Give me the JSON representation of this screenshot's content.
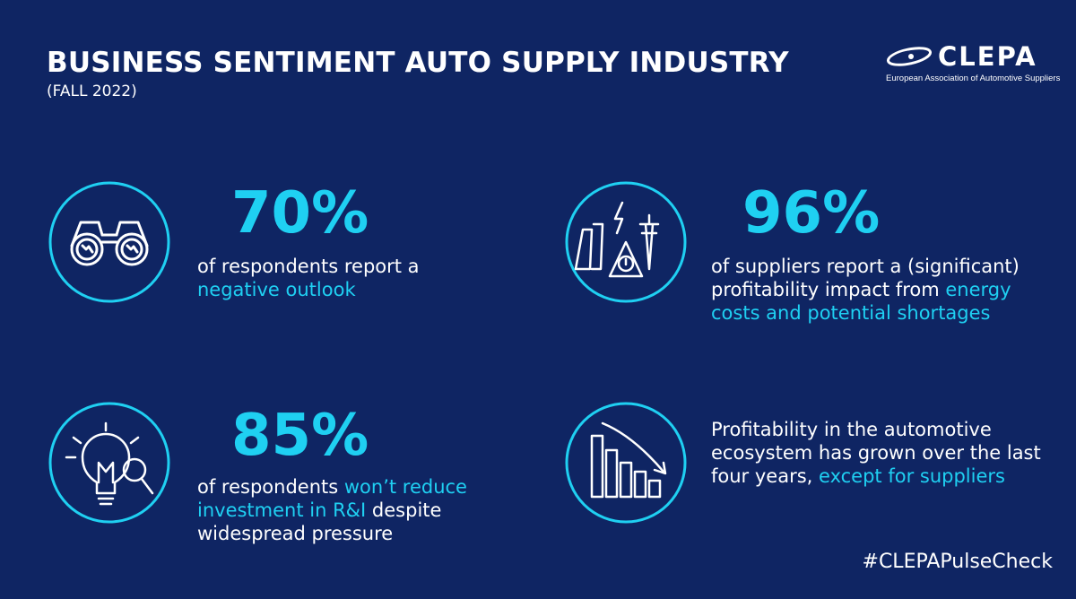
{
  "header": {
    "title": "BUSINESS SENTIMENT AUTO SUPPLY INDUSTRY",
    "subtitle": "(FALL 2022)"
  },
  "logo": {
    "name": "CLEPA",
    "tagline": "European Association of Automotive Suppliers"
  },
  "stats": [
    {
      "icon": "binoculars-icon",
      "value": "70%",
      "text_before": "of respondents report a ",
      "highlight": "negative outlook",
      "text_after": ""
    },
    {
      "icon": "energy-warning-icon",
      "value": "96%",
      "text_before": "of suppliers report a (significant) profitability impact from ",
      "highlight": "energy costs and potential shortages",
      "text_after": ""
    },
    {
      "icon": "lightbulb-magnifier-icon",
      "value": "85%",
      "text_before": "of respondents ",
      "highlight": "won’t reduce investment in R&I",
      "text_after": " despite widespread pressure"
    },
    {
      "icon": "declining-bar-chart-icon",
      "value": "",
      "text_before": "Profitability in the automotive ecosystem has grown over the last four years, ",
      "highlight": "except for suppliers",
      "text_after": ""
    }
  ],
  "footer": {
    "hashtag": "#CLEPAPulseCheck"
  },
  "colors": {
    "background": "#0f2563",
    "accent": "#1fd0f2",
    "text": "#ffffff"
  }
}
